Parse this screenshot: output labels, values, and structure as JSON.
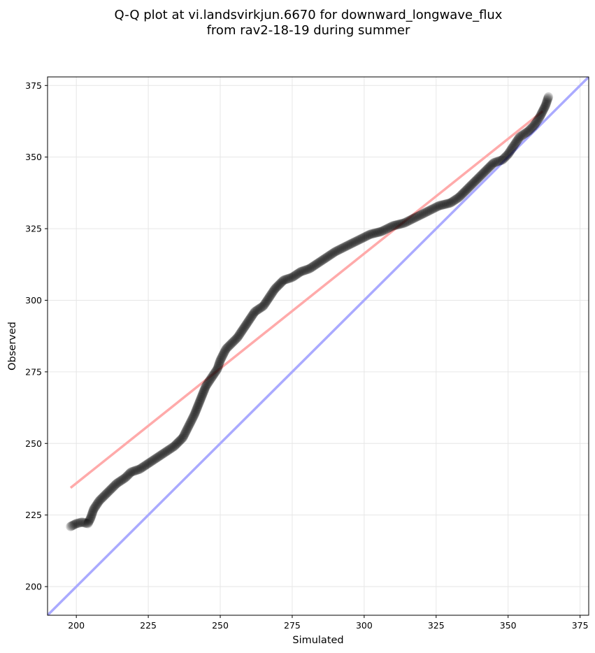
{
  "chart_data": {
    "type": "scatter",
    "title_lines": [
      "Q-Q plot at vi.landsvirkjun.6670 for downward_longwave_flux",
      "from rav2-18-19 during summer"
    ],
    "xlabel": "Simulated",
    "ylabel": "Observed",
    "xlim": [
      190,
      378
    ],
    "ylim": [
      190,
      378
    ],
    "xticks": [
      200,
      225,
      250,
      275,
      300,
      325,
      350,
      375
    ],
    "yticks": [
      200,
      225,
      250,
      275,
      300,
      325,
      350,
      375
    ],
    "grid": true,
    "quantile_curve": {
      "color": "#000000",
      "opacity": 0.16,
      "points": [
        [
          198,
          221
        ],
        [
          200,
          222
        ],
        [
          202,
          222.5
        ],
        [
          204,
          222
        ],
        [
          205,
          224
        ],
        [
          206,
          227
        ],
        [
          208,
          230
        ],
        [
          210,
          232
        ],
        [
          212,
          234
        ],
        [
          214,
          236
        ],
        [
          217,
          238
        ],
        [
          219,
          240
        ],
        [
          222,
          241
        ],
        [
          225,
          243
        ],
        [
          228,
          245
        ],
        [
          231,
          247
        ],
        [
          234,
          249
        ],
        [
          237,
          252
        ],
        [
          239,
          256
        ],
        [
          241,
          260
        ],
        [
          243,
          265
        ],
        [
          245,
          270
        ],
        [
          247,
          273
        ],
        [
          249,
          276
        ],
        [
          250,
          279
        ],
        [
          252,
          283
        ],
        [
          254,
          285
        ],
        [
          256,
          287
        ],
        [
          258,
          290
        ],
        [
          260,
          293
        ],
        [
          262,
          296
        ],
        [
          265,
          298
        ],
        [
          267,
          301
        ],
        [
          269,
          304
        ],
        [
          272,
          307
        ],
        [
          275,
          308
        ],
        [
          278,
          310
        ],
        [
          281,
          311
        ],
        [
          284,
          313
        ],
        [
          287,
          315
        ],
        [
          290,
          317
        ],
        [
          294,
          319
        ],
        [
          298,
          321
        ],
        [
          302,
          323
        ],
        [
          306,
          324
        ],
        [
          310,
          326
        ],
        [
          314,
          327
        ],
        [
          318,
          329
        ],
        [
          322,
          331
        ],
        [
          326,
          333
        ],
        [
          330,
          334
        ],
        [
          333,
          336
        ],
        [
          336,
          339
        ],
        [
          339,
          342
        ],
        [
          342,
          345
        ],
        [
          345,
          348
        ],
        [
          348,
          349
        ],
        [
          350,
          351
        ],
        [
          352,
          354
        ],
        [
          354,
          357
        ],
        [
          357,
          359
        ],
        [
          359,
          361
        ],
        [
          361,
          364
        ],
        [
          362,
          366
        ],
        [
          363,
          368
        ],
        [
          364,
          371
        ]
      ]
    },
    "reference_lines": [
      {
        "name": "identity",
        "color": "#aaaaff",
        "points": [
          [
            190,
            190
          ],
          [
            378,
            378
          ]
        ]
      },
      {
        "name": "fit",
        "color": "#ffaaaa",
        "points": [
          [
            198,
            234.5
          ],
          [
            362,
            366
          ]
        ]
      }
    ]
  }
}
